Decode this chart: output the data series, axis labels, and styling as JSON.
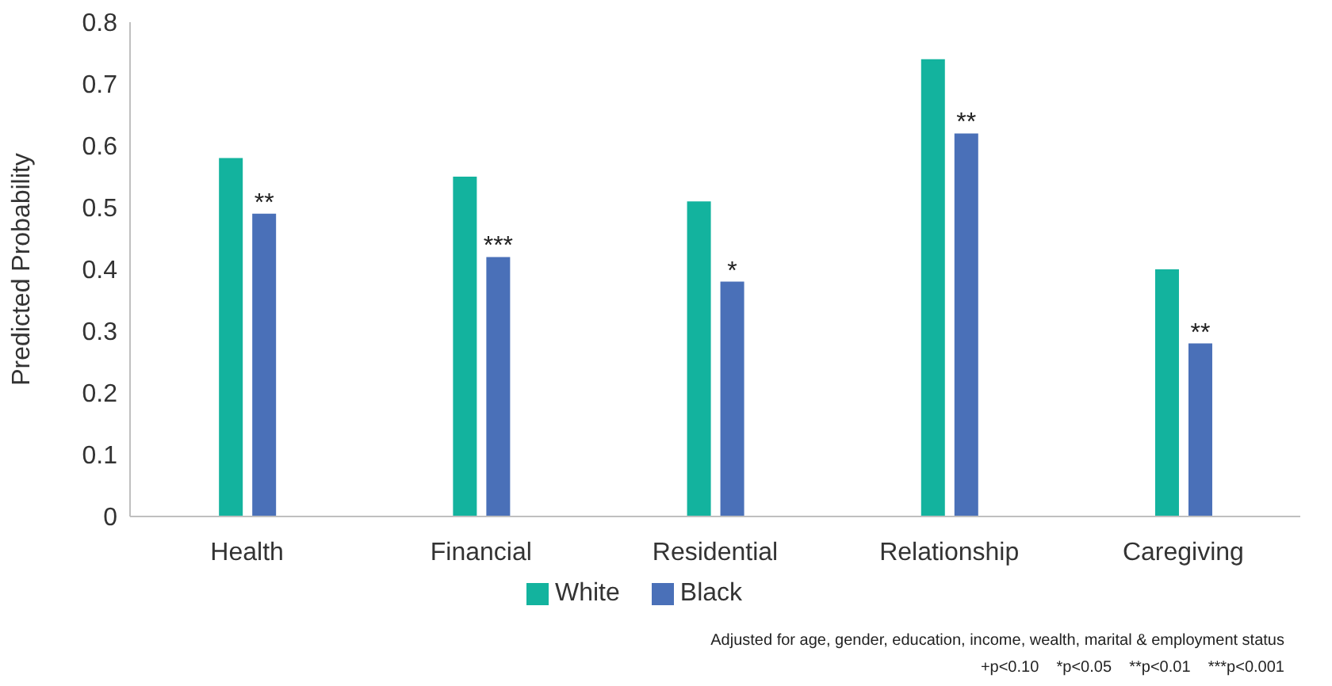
{
  "chart_data": {
    "type": "bar",
    "ylabel": "Predicted Probability",
    "categories": [
      "Health",
      "Financial",
      "Residential",
      "Relationship",
      "Caregiving"
    ],
    "series": [
      {
        "name": "White",
        "color": "#13b39e",
        "values": [
          0.58,
          0.55,
          0.51,
          0.74,
          0.4
        ]
      },
      {
        "name": "Black",
        "color": "#4a70b8",
        "values": [
          0.49,
          0.42,
          0.38,
          0.62,
          0.28
        ]
      }
    ],
    "ylim": [
      0,
      0.8
    ],
    "yticks": [
      0,
      0.1,
      0.2,
      0.3,
      0.4,
      0.5,
      0.6,
      0.7,
      0.8
    ],
    "grid": false,
    "legend": "bottom",
    "annotations": [
      {
        "text": "**",
        "x": "Health",
        "y": 0.49
      },
      {
        "text": "***",
        "x": "Financial",
        "y": 0.42
      },
      {
        "text": "*",
        "x": "Residential",
        "y": 0.38
      },
      {
        "text": "**",
        "x": "Relationship",
        "y": 0.62
      },
      {
        "text": "**",
        "x": "Caregiving",
        "y": 0.28
      },
      "Adjusted for age, gender, education, income, wealth, marital & employment status",
      "+p<0.10    *p<0.05    **p<0.01    ***p<0.001"
    ]
  }
}
